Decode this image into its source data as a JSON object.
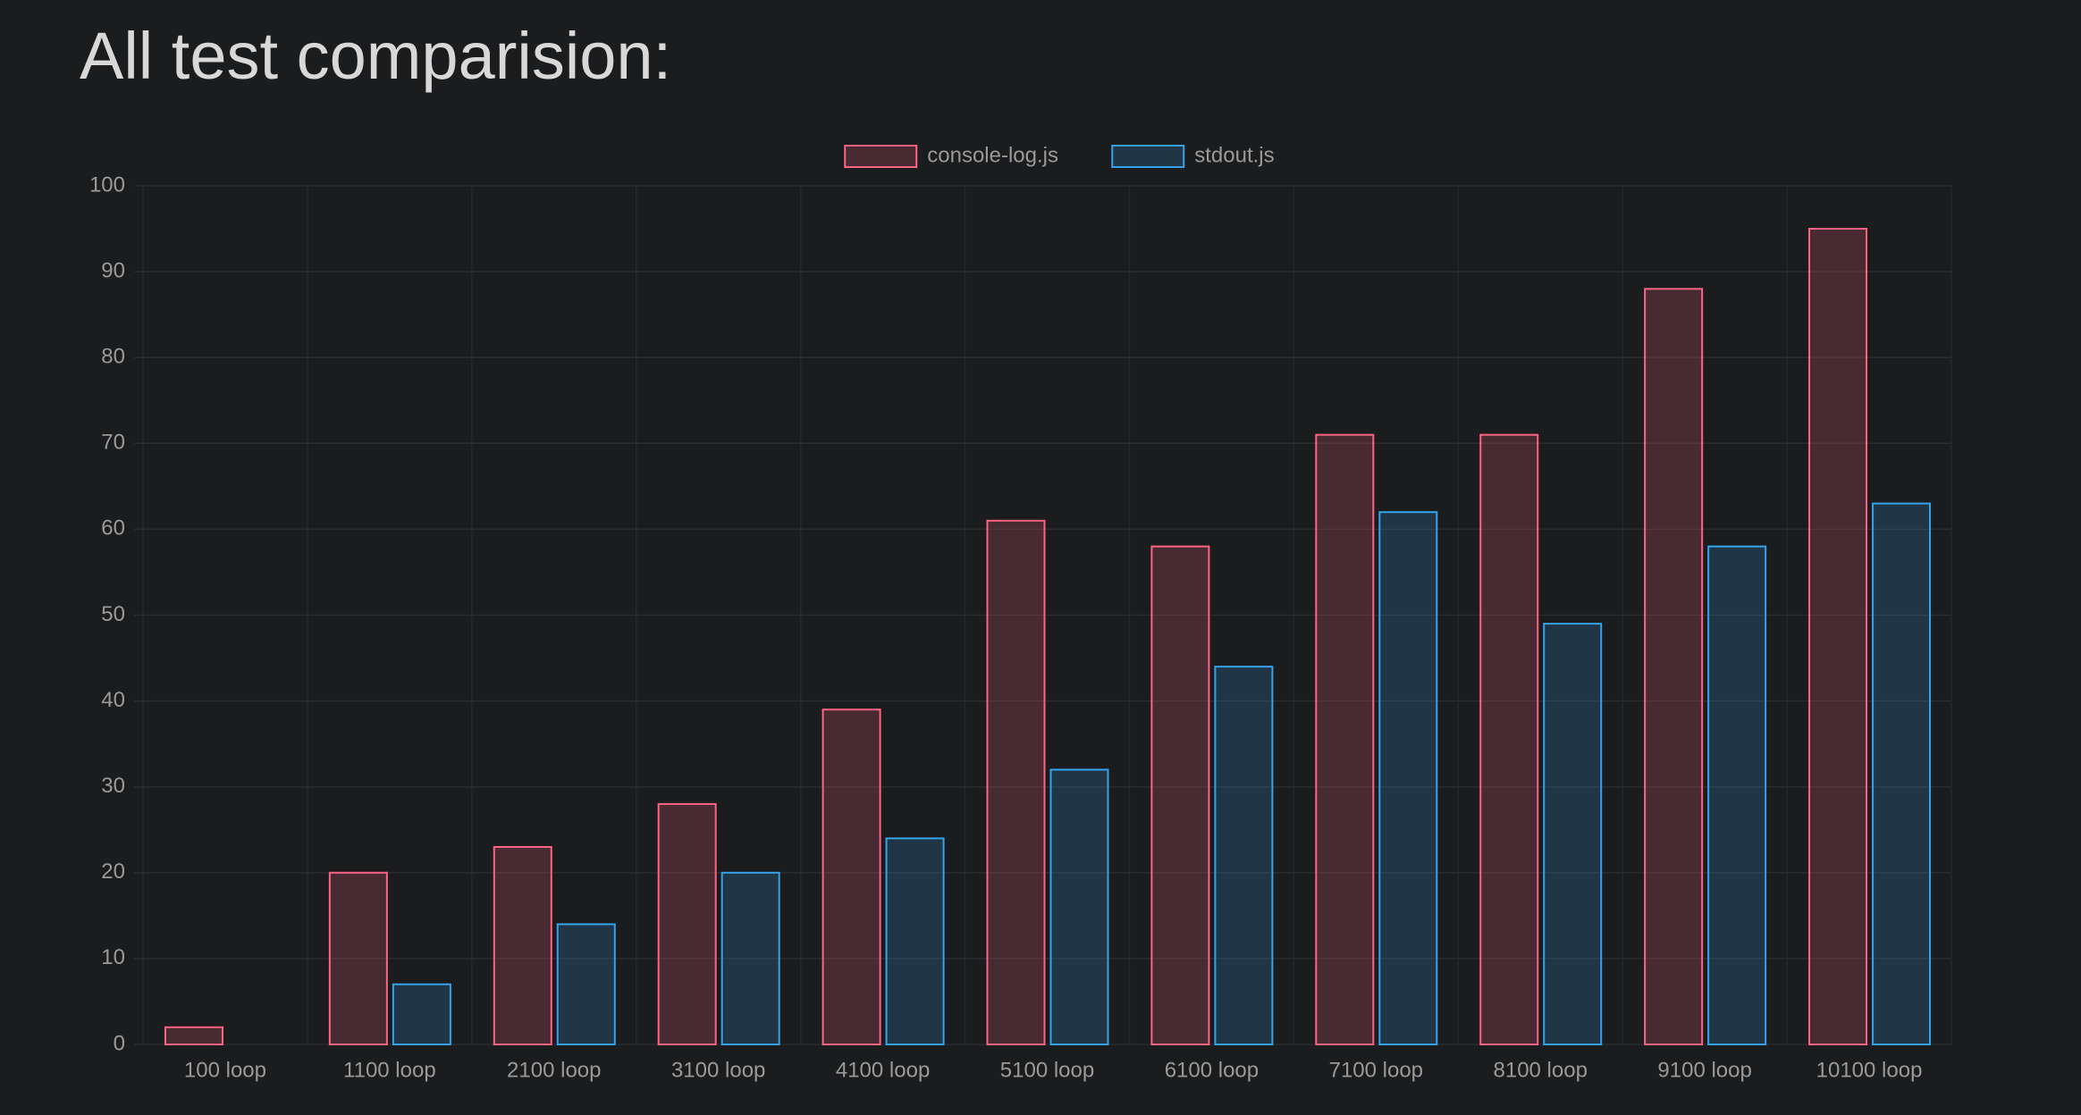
{
  "chart_data": {
    "type": "bar",
    "title": "All test comparision:",
    "categories": [
      "100 loop",
      "1100 loop",
      "2100 loop",
      "3100 loop",
      "4100 loop",
      "5100 loop",
      "6100 loop",
      "7100 loop",
      "8100 loop",
      "9100 loop",
      "10100 loop"
    ],
    "series": [
      {
        "name": "console-log.js",
        "color": "#ff6384",
        "values": [
          2,
          20,
          23,
          28,
          39,
          61,
          58,
          71,
          71,
          88,
          95
        ]
      },
      {
        "name": "stdout.js",
        "color": "#36a2eb",
        "values": [
          0,
          7,
          14,
          20,
          24,
          32,
          44,
          62,
          49,
          58,
          63
        ]
      }
    ],
    "ylim": [
      0,
      100
    ],
    "yticks": [
      0,
      10,
      20,
      30,
      40,
      50,
      60,
      70,
      80,
      90,
      100
    ],
    "grid": true,
    "legend": "top"
  }
}
